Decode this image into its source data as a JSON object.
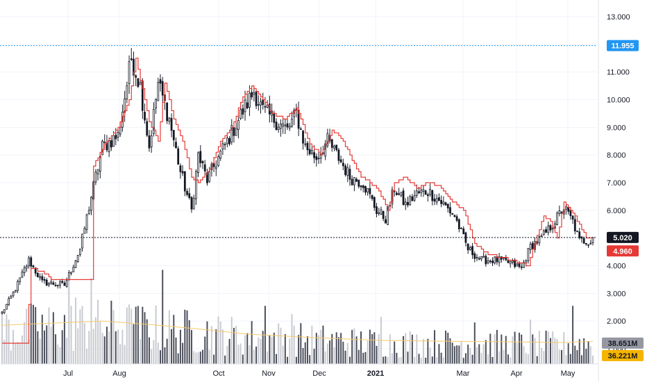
{
  "colors": {
    "background": "#ffffff",
    "grid": "#f0f3fa",
    "candle": "#131722",
    "stop_line": "#e53935",
    "volume_dark": "#4a4e5a",
    "volume_light": "#c8cad0",
    "volume_ma": "#f7c96b",
    "high_line": "#2196f3",
    "last_line": "#131722",
    "badge_high": "#2196f3",
    "badge_last": "#131722",
    "badge_stop": "#e53935",
    "badge_vol": "#9598a1",
    "badge_volma": "#f5b400"
  },
  "chart_data": {
    "type": "candlestick",
    "x_labels": [
      "Jul",
      "Aug",
      "Oct",
      "Nov",
      "Dec",
      "2021",
      "Mar",
      "Apr",
      "May"
    ],
    "x_label_bold": "2021",
    "y_ticks": [
      "13.000",
      "12.000",
      "11.000",
      "10.000",
      "9.000",
      "8.000",
      "7.000",
      "6.000",
      "5.000",
      "4.000",
      "3.000",
      "2.000",
      "1.000"
    ],
    "y_tick_values": [
      13,
      12,
      11,
      10,
      9,
      8,
      7,
      6,
      5,
      4,
      3,
      2,
      1
    ],
    "ylim": [
      0.45,
      13.3
    ],
    "price_anchors": [
      [
        0,
        2.3
      ],
      [
        5,
        3.0
      ],
      [
        12,
        4.2
      ],
      [
        18,
        3.4
      ],
      [
        28,
        3.3
      ],
      [
        35,
        4.6
      ],
      [
        40,
        6.5
      ],
      [
        45,
        8.3
      ],
      [
        52,
        8.7
      ],
      [
        58,
        11.5
      ],
      [
        62,
        10.5
      ],
      [
        66,
        8.3
      ],
      [
        70,
        10.6
      ],
      [
        75,
        9.3
      ],
      [
        80,
        7.4
      ],
      [
        85,
        6.0
      ],
      [
        88,
        8.0
      ],
      [
        92,
        7.1
      ],
      [
        97,
        7.9
      ],
      [
        103,
        8.8
      ],
      [
        108,
        9.6
      ],
      [
        113,
        10.3
      ],
      [
        117,
        9.6
      ],
      [
        122,
        9.3
      ],
      [
        128,
        8.9
      ],
      [
        132,
        9.5
      ],
      [
        136,
        8.3
      ],
      [
        141,
        7.9
      ],
      [
        146,
        8.5
      ],
      [
        151,
        7.9
      ],
      [
        156,
        7.2
      ],
      [
        162,
        7.0
      ],
      [
        168,
        6.0
      ],
      [
        172,
        5.7
      ],
      [
        176,
        6.8
      ],
      [
        181,
        6.2
      ],
      [
        186,
        6.6
      ],
      [
        191,
        6.7
      ],
      [
        197,
        6.3
      ],
      [
        203,
        5.8
      ],
      [
        209,
        4.6
      ],
      [
        215,
        4.2
      ],
      [
        222,
        4.2
      ],
      [
        228,
        4.1
      ],
      [
        233,
        3.9
      ],
      [
        237,
        4.7
      ],
      [
        242,
        5.0
      ],
      [
        247,
        5.5
      ],
      [
        252,
        6.1
      ],
      [
        256,
        5.6
      ],
      [
        259,
        4.9
      ],
      [
        265,
        4.9
      ]
    ],
    "stop_anchors": [
      [
        0,
        1.2
      ],
      [
        11,
        1.2
      ],
      [
        13,
        3.9
      ],
      [
        18,
        3.8
      ],
      [
        22,
        3.5
      ],
      [
        40,
        3.5
      ],
      [
        41,
        7.6
      ],
      [
        46,
        8.4
      ],
      [
        52,
        9.0
      ],
      [
        57,
        10.0
      ],
      [
        60,
        11.5
      ],
      [
        66,
        9.2
      ],
      [
        70,
        8.5
      ],
      [
        73,
        10.6
      ],
      [
        77,
        9.3
      ],
      [
        81,
        8.5
      ],
      [
        85,
        7.2
      ],
      [
        88,
        7.0
      ],
      [
        93,
        7.5
      ],
      [
        98,
        8.5
      ],
      [
        103,
        9.0
      ],
      [
        108,
        10.1
      ],
      [
        112,
        10.5
      ],
      [
        117,
        10.0
      ],
      [
        121,
        9.5
      ],
      [
        127,
        9.3
      ],
      [
        132,
        9.7
      ],
      [
        138,
        8.4
      ],
      [
        143,
        8.0
      ],
      [
        148,
        8.9
      ],
      [
        152,
        8.6
      ],
      [
        156,
        8.0
      ],
      [
        161,
        7.2
      ],
      [
        165,
        7.0
      ],
      [
        169,
        6.7
      ],
      [
        173,
        6.0
      ],
      [
        176,
        7.0
      ],
      [
        181,
        7.2
      ],
      [
        186,
        6.8
      ],
      [
        191,
        7.0
      ],
      [
        196,
        6.9
      ],
      [
        201,
        6.4
      ],
      [
        207,
        6.0
      ],
      [
        212,
        4.8
      ],
      [
        218,
        4.4
      ],
      [
        225,
        4.3
      ],
      [
        232,
        4.1
      ],
      [
        236,
        4.0
      ],
      [
        238,
        4.6
      ],
      [
        243,
        5.8
      ],
      [
        246,
        5.6
      ],
      [
        249,
        5.0
      ],
      [
        252,
        6.3
      ],
      [
        256,
        5.9
      ],
      [
        259,
        5.5
      ],
      [
        262,
        5.0
      ],
      [
        265,
        4.96
      ]
    ],
    "volume_ma_anchors": [
      [
        0,
        1.4
      ],
      [
        30,
        1.5
      ],
      [
        45,
        1.55
      ],
      [
        70,
        1.4
      ],
      [
        90,
        1.25
      ],
      [
        110,
        1.08
      ],
      [
        140,
        0.95
      ],
      [
        170,
        0.85
      ],
      [
        200,
        0.82
      ],
      [
        230,
        0.8
      ],
      [
        250,
        0.77
      ],
      [
        265,
        0.82
      ]
    ],
    "volume_tall_bars": [
      [
        11,
        2.0
      ],
      [
        30,
        3.1
      ],
      [
        33,
        2.4
      ],
      [
        40,
        3.1
      ],
      [
        58,
        2.0
      ],
      [
        72,
        3.4
      ],
      [
        103,
        1.7
      ],
      [
        118,
        2.1
      ],
      [
        130,
        1.8
      ],
      [
        170,
        1.7
      ],
      [
        212,
        1.5
      ],
      [
        237,
        1.6
      ],
      [
        256,
        2.1
      ]
    ],
    "candle_count": 266,
    "high_marker": "11.955",
    "high_value": 11.955,
    "last_price": "5.020",
    "last_value": 5.02,
    "stop_value_label": "4.960",
    "stop_value": 4.96,
    "volume_label": "38.651M",
    "volume_ma_label": "36.221M"
  }
}
